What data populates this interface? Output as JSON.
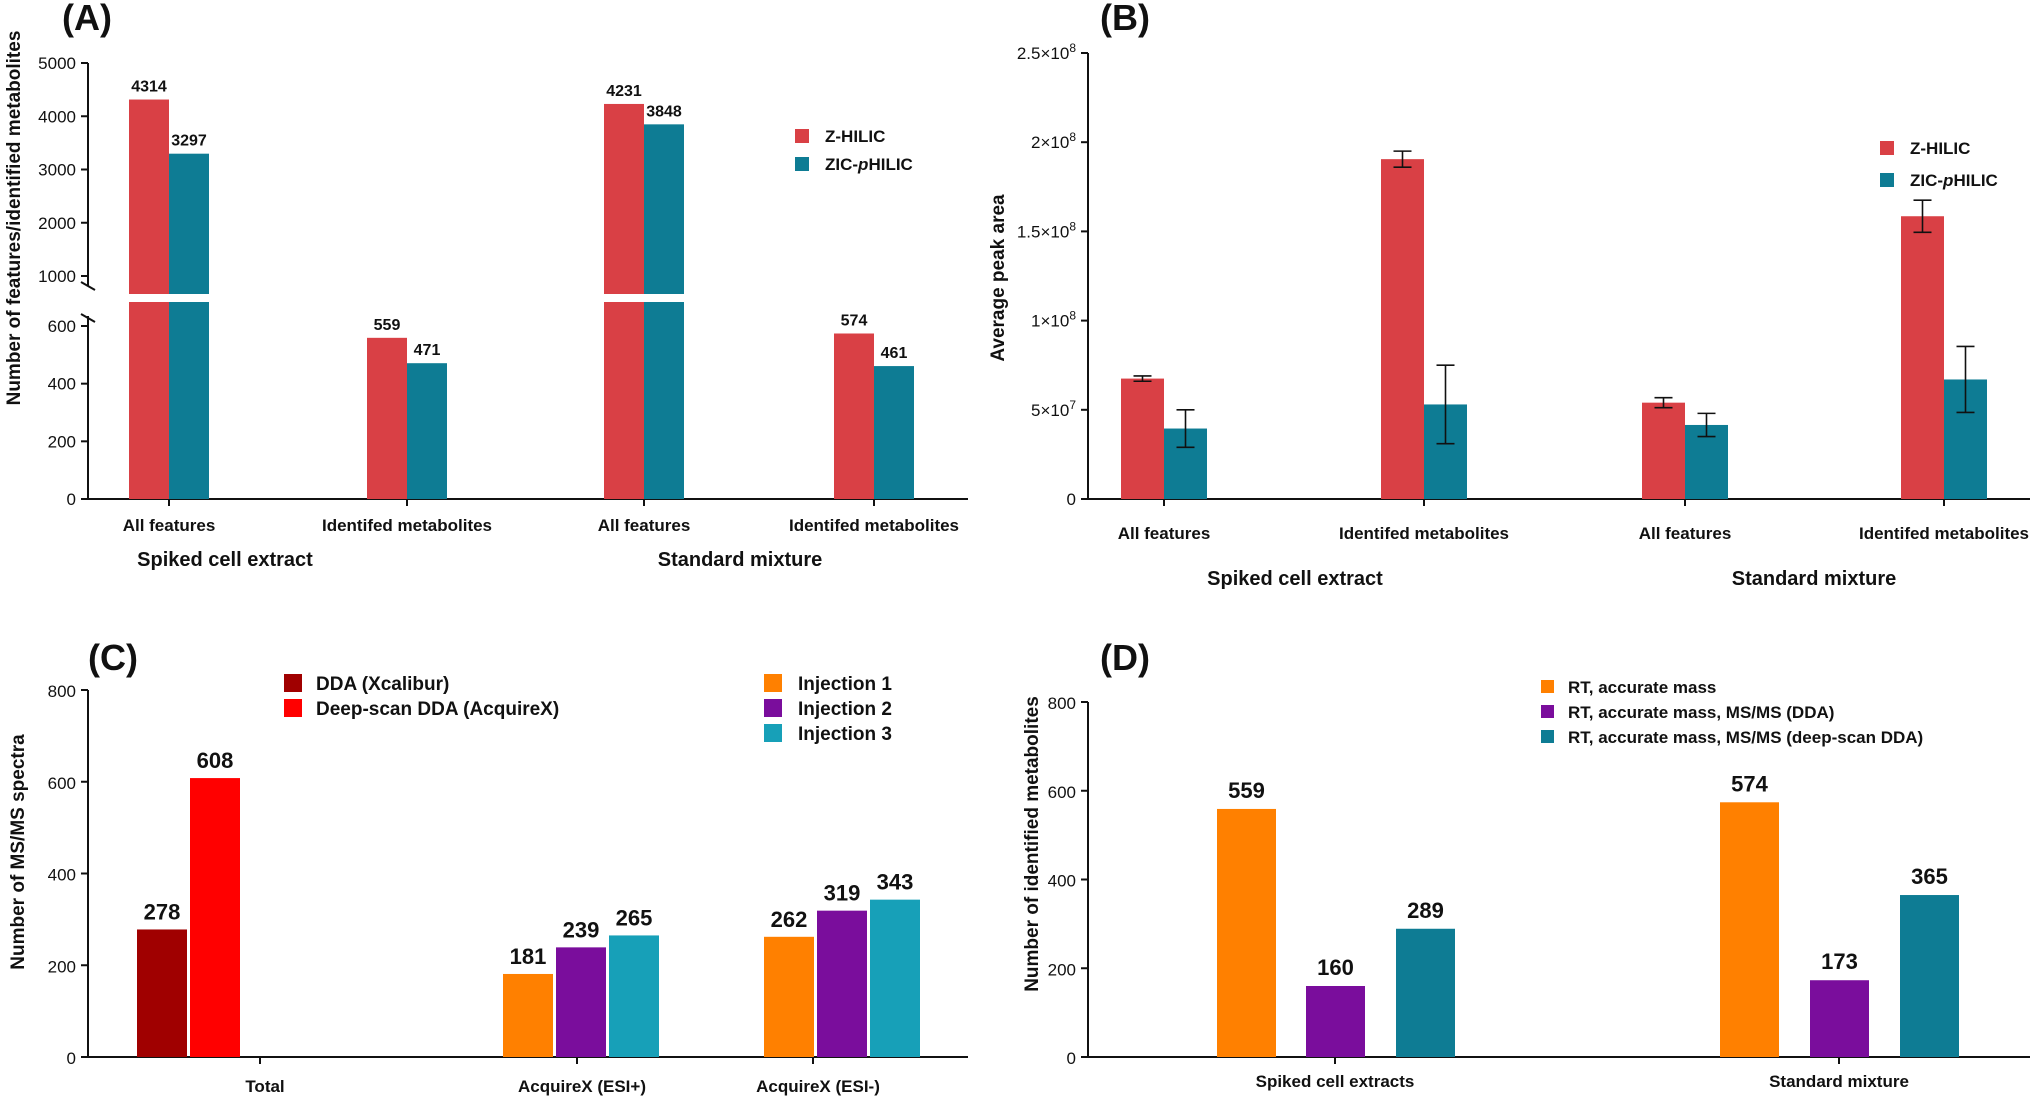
{
  "chart_data": [
    {
      "panel": "(A)",
      "type": "bar",
      "ylabel": "Number of features/identified metabolites",
      "axis_break": true,
      "y_ticks_lower": [
        "0",
        "200",
        "400",
        "600"
      ],
      "y_ticks_upper": [
        "1000",
        "2000",
        "3000",
        "4000",
        "5000"
      ],
      "categories": [
        "All features",
        "Identifed metabolites",
        "All features",
        "Identifed metabolites"
      ],
      "groups": [
        "Spiked cell extract",
        "Standard mixture"
      ],
      "series": [
        {
          "name": "Z-HILIC",
          "color": "#d94045",
          "values": [
            4314,
            559,
            4231,
            574
          ],
          "labels": [
            "4314",
            "559",
            "4231",
            "574"
          ]
        },
        {
          "name": "ZIC-pHILIC",
          "color": "#0e7c94",
          "values": [
            3297,
            471,
            3848,
            461
          ],
          "labels": [
            "3297",
            "471",
            "3848",
            "461"
          ]
        }
      ]
    },
    {
      "panel": "(B)",
      "type": "bar",
      "ylabel": "Average peak area",
      "ylim": [
        0,
        250000000
      ],
      "y_ticks": [
        {
          "base": "0",
          "exp": "",
          "value": 0
        },
        {
          "base": "5×10",
          "exp": "7",
          "value": 50000000
        },
        {
          "base": "1×10",
          "exp": "8",
          "value": 100000000
        },
        {
          "base": "1.5×10",
          "exp": "8",
          "value": 150000000
        },
        {
          "base": "2×10",
          "exp": "8",
          "value": 200000000
        },
        {
          "base": "2.5×10",
          "exp": "8",
          "value": 250000000
        }
      ],
      "categories": [
        "All features",
        "Identifed metabolites",
        "All features",
        "Identifed metabolites"
      ],
      "groups": [
        "Spiked cell extract",
        "Standard mixture"
      ],
      "series": [
        {
          "name": "Z-HILIC",
          "color": "#d94045",
          "values": [
            67500000,
            190500000,
            54000000,
            158500000
          ],
          "errors": [
            1500000,
            4500000,
            2800000,
            9000000
          ]
        },
        {
          "name": "ZIC-pHILIC",
          "color": "#0e7c94",
          "values": [
            39500000,
            53000000,
            41500000,
            67000000
          ],
          "errors": [
            10500000,
            22000000,
            6500000,
            18500000
          ]
        }
      ]
    },
    {
      "panel": "(C)",
      "type": "bar",
      "ylabel": "Number of MS/MS spectra",
      "ylim": [
        0,
        800
      ],
      "y_ticks": [
        "0",
        "200",
        "400",
        "600",
        "800"
      ],
      "categories": [
        "Total",
        "AcquireX (ESI+)",
        "AcquireX (ESI-)"
      ],
      "legend_left": [
        "DDA (Xcalibur)",
        "Deep-scan DDA (AcquireX)"
      ],
      "legend_right": [
        "Injection 1",
        "Injection 2",
        "Injection 3"
      ],
      "series": [
        {
          "name": "DDA (Xcalibur)",
          "color": "#a00000",
          "values": [
            278,
            null,
            null
          ]
        },
        {
          "name": "Deep-scan DDA (AcquireX)",
          "color": "#ff0000",
          "values": [
            608,
            null,
            null
          ]
        },
        {
          "name": "Injection 1",
          "color": "#ff8000",
          "values": [
            null,
            181,
            262
          ]
        },
        {
          "name": "Injection 2",
          "color": "#7a0d9c",
          "values": [
            null,
            239,
            319
          ]
        },
        {
          "name": "Injection 3",
          "color": "#17a0b8",
          "values": [
            null,
            265,
            343
          ]
        }
      ]
    },
    {
      "panel": "(D)",
      "type": "bar",
      "ylabel": "Number of identified metabolites",
      "ylim": [
        0,
        800
      ],
      "y_ticks": [
        "0",
        "200",
        "400",
        "600",
        "800"
      ],
      "categories": [
        "Spiked cell extracts",
        "Standard mixture"
      ],
      "series": [
        {
          "name": "RT, accurate mass",
          "color": "#ff8000",
          "values": [
            559,
            574
          ]
        },
        {
          "name": "RT, accurate mass, MS/MS (DDA)",
          "color": "#7a0d9c",
          "values": [
            160,
            173
          ]
        },
        {
          "name": "RT, accurate mass, MS/MS (deep-scan DDA)",
          "color": "#0e7c94",
          "values": [
            289,
            365
          ]
        }
      ]
    }
  ]
}
